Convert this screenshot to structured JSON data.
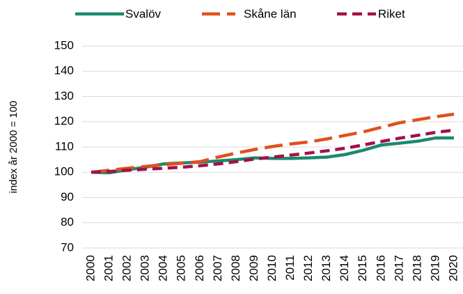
{
  "chart_data": {
    "type": "line",
    "y_label": "index år 2000 = 100",
    "categories": [
      "2000",
      "2001",
      "2002",
      "2003",
      "2004",
      "2005",
      "2006",
      "2007",
      "2008",
      "2009",
      "2010",
      "2011",
      "2012",
      "2013",
      "2014",
      "2015",
      "2016",
      "2017",
      "2018",
      "2019",
      "2020"
    ],
    "series": [
      {
        "name": "Svalöv",
        "color": "#1a8a6e",
        "dash": "solid",
        "values": [
          100,
          99.8,
          101,
          102,
          103.3,
          103.7,
          104,
          104.5,
          105,
          105.7,
          105.5,
          105.5,
          105.7,
          106,
          107,
          108.7,
          110.8,
          111.5,
          112.3,
          113.6,
          113.6
        ]
      },
      {
        "name": "Skåne län",
        "color": "#e0501e",
        "dash": "long",
        "values": [
          100,
          100.8,
          101.6,
          102.3,
          103,
          103.6,
          104.2,
          106,
          107.6,
          109,
          110.2,
          111.2,
          112,
          113.2,
          114.6,
          116,
          117.8,
          119.6,
          120.8,
          122,
          123
        ]
      },
      {
        "name": "Riket",
        "color": "#a3104a",
        "dash": "short",
        "values": [
          100,
          100.3,
          100.8,
          101.2,
          101.6,
          102,
          102.6,
          103.3,
          104.2,
          105.2,
          106,
          106.8,
          107.6,
          108.5,
          109.5,
          110.8,
          112.2,
          113.5,
          114.6,
          115.8,
          116.7
        ]
      }
    ],
    "ylim": [
      70,
      150
    ],
    "yticks": [
      70,
      80,
      90,
      100,
      110,
      120,
      130,
      140,
      150
    ],
    "grid": true,
    "legend": "top"
  }
}
